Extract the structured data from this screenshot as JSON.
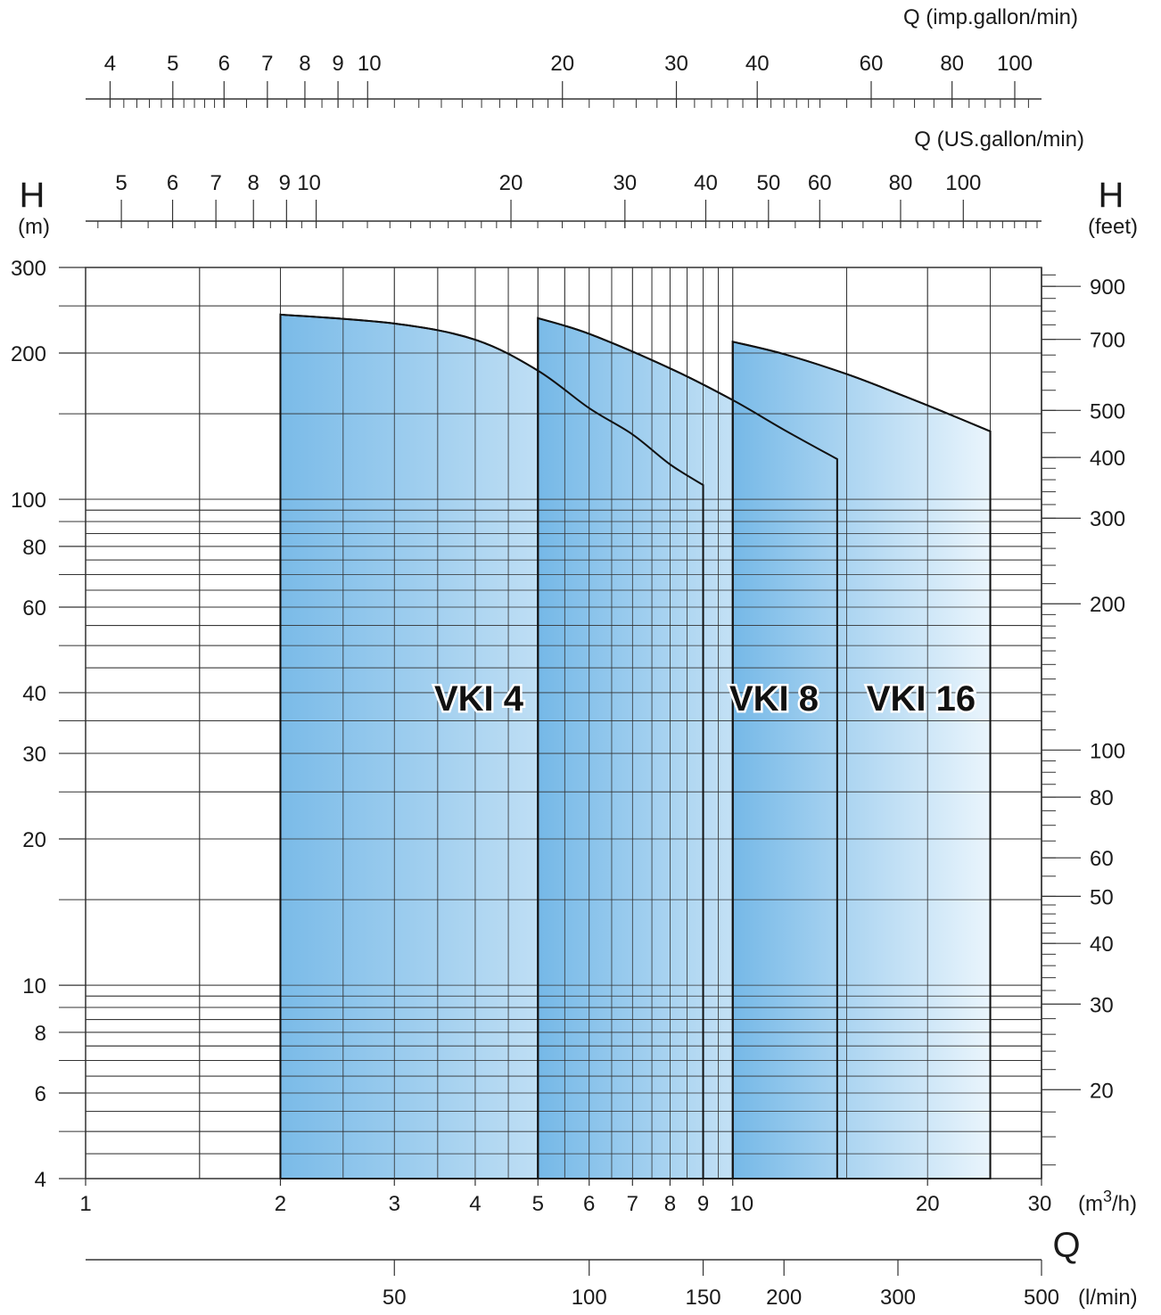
{
  "chart_data": {
    "type": "area",
    "title": "",
    "grid": true,
    "x_axis": {
      "scale": "log",
      "range": [
        1,
        30
      ],
      "ticks": [
        1,
        2,
        3,
        4,
        5,
        6,
        7,
        8,
        9,
        10,
        20,
        30
      ],
      "tick_labels": [
        "1",
        "2",
        "3",
        "4",
        "5",
        "6",
        "7",
        "8",
        "9",
        "10",
        "20",
        "30"
      ],
      "unit_prefix": "(m",
      "unit_sup": "3",
      "unit_suffix": "/h)",
      "letter": "Q"
    },
    "x_axis_lmin": {
      "scale": "log",
      "ticks": [
        50,
        100,
        150,
        200,
        300,
        500
      ],
      "tick_labels": [
        "50",
        "100",
        "150",
        "200",
        "300",
        "500"
      ],
      "unit": "(l/min)"
    },
    "x_axis_imp_gallon": {
      "scale": "log",
      "ticks": [
        4,
        5,
        6,
        7,
        8,
        9,
        10,
        20,
        30,
        40,
        60,
        80,
        100
      ],
      "tick_labels": [
        "4",
        "5",
        "6",
        "7",
        "8",
        "9",
        "10",
        "20",
        "30",
        "40",
        "60",
        "80",
        "100"
      ],
      "unit": "Q (imp.gallon/min)"
    },
    "x_axis_us_gallon": {
      "scale": "log",
      "ticks": [
        5,
        6,
        7,
        8,
        9,
        10,
        20,
        30,
        40,
        50,
        60,
        80,
        100
      ],
      "tick_labels": [
        "5",
        "6",
        "7",
        "8",
        "9",
        "10",
        "20",
        "30",
        "40",
        "50",
        "60",
        "80",
        "100"
      ],
      "unit": "Q (US.gallon/min)"
    },
    "y_axis": {
      "scale": "log",
      "range": [
        4,
        300
      ],
      "ticks": [
        4,
        6,
        8,
        10,
        20,
        30,
        40,
        60,
        80,
        100,
        200,
        300
      ],
      "tick_labels": [
        "4",
        "6",
        "8",
        "10",
        "20",
        "30",
        "40",
        "60",
        "80",
        "100",
        "200",
        "300"
      ],
      "letter": "H",
      "unit": "(m)"
    },
    "y_axis_feet": {
      "scale": "log",
      "ticks": [
        20,
        30,
        40,
        50,
        60,
        80,
        100,
        200,
        300,
        400,
        500,
        700,
        900
      ],
      "tick_labels": [
        "20",
        "30",
        "40",
        "50",
        "60",
        "80",
        "100",
        "200",
        "300",
        "400",
        "500",
        "700",
        "900"
      ],
      "letter": "H",
      "unit": "(feet)"
    },
    "series": [
      {
        "name": "VKI 4",
        "q": [
          2,
          3,
          4,
          5,
          6,
          7,
          8,
          9
        ],
        "h": [
          240,
          230,
          213,
          184,
          154,
          136,
          118,
          107
        ],
        "h_min": 4
      },
      {
        "name": "VKI 8",
        "q": [
          5,
          6,
          8,
          10,
          12,
          14.5
        ],
        "h": [
          236,
          219,
          186,
          160,
          139,
          121
        ],
        "h_min": 4
      },
      {
        "name": "VKI 16",
        "q": [
          10,
          12,
          15,
          18,
          21,
          25
        ],
        "h": [
          211,
          199,
          181,
          165,
          152,
          138
        ],
        "h_min": 4
      }
    ],
    "colors": {
      "fill_dark": "#6fb5e6",
      "fill_light": "#e8f4fc",
      "grid": "#333333",
      "outline": "#111111"
    }
  }
}
